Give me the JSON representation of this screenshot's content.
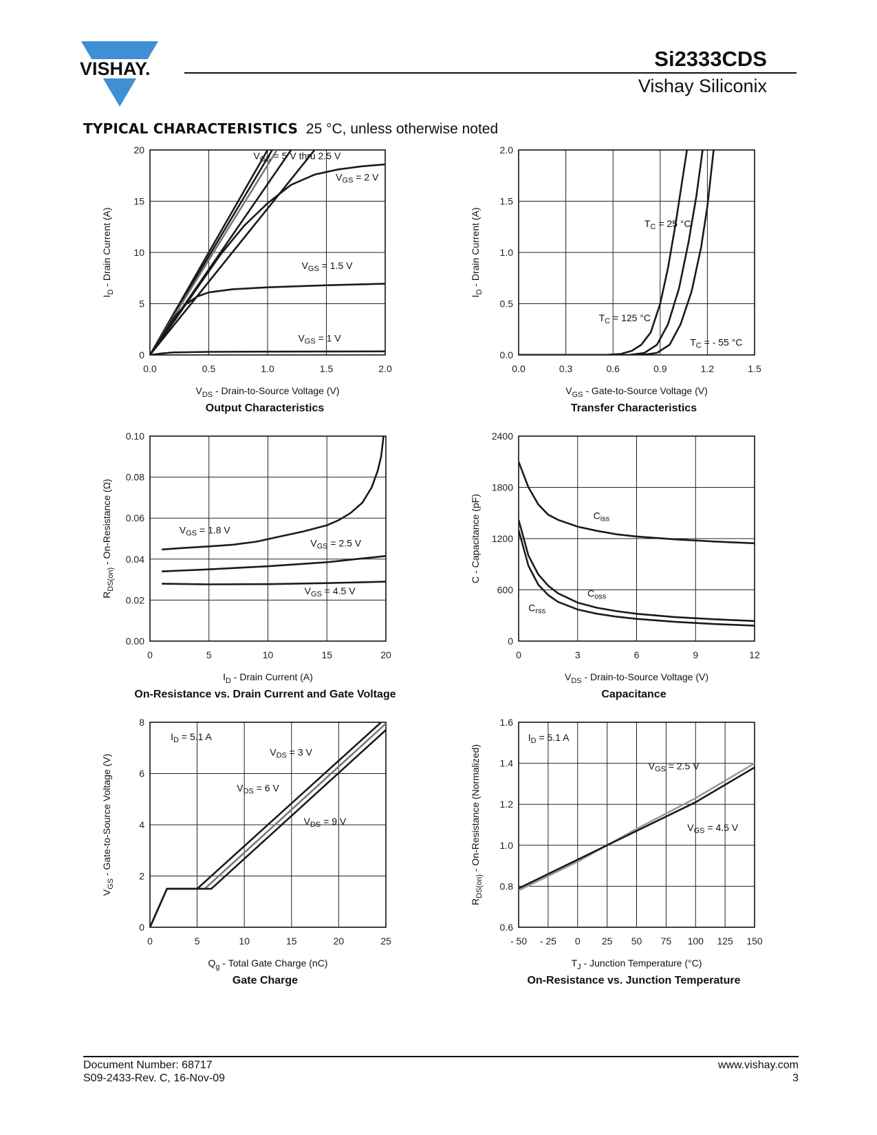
{
  "header": {
    "brand": "VISHAY.",
    "part_number": "Si2333CDS",
    "company": "Vishay Siliconix"
  },
  "section": {
    "title": "TYPICAL CHARACTERISTICS",
    "condition": "25 °C, unless otherwise noted"
  },
  "footer": {
    "doc_number": "Document Number: 68717",
    "revision": "S09-2433-Rev. C, 16-Nov-09",
    "website": "www.vishay.com",
    "page_number": "3"
  },
  "chart_data": [
    {
      "id": "output",
      "type": "line",
      "title": "Output Characteristics",
      "xlabel": "V_DS - Drain-to-Source Voltage (V)",
      "ylabel": "I_D - Drain Current (A)",
      "xlim": [
        0,
        2.0
      ],
      "ylim": [
        0,
        20
      ],
      "xticks": [
        "0.0",
        "0.5",
        "1.0",
        "1.5",
        "2.0"
      ],
      "yticks": [
        "0",
        "5",
        "10",
        "15",
        "20"
      ],
      "grid": true,
      "series": [
        {
          "name": "VGS = 5 V thru 2.5 V",
          "color": "#1a1a1a",
          "points": [
            [
              0,
              0
            ],
            [
              0.25,
              5
            ],
            [
              0.5,
              10
            ],
            [
              0.75,
              15
            ],
            [
              1.0,
              20
            ]
          ]
        },
        {
          "name": "",
          "color": "#1a1a1a",
          "points": [
            [
              0,
              0
            ],
            [
              0.26,
              5
            ],
            [
              0.52,
              10
            ],
            [
              0.78,
              15
            ],
            [
              1.04,
              20
            ]
          ]
        },
        {
          "name": "",
          "color": "#777777",
          "points": [
            [
              0,
              0
            ],
            [
              0.27,
              5
            ],
            [
              0.54,
              10
            ],
            [
              0.81,
              15
            ],
            [
              1.08,
              20
            ]
          ]
        },
        {
          "name": "",
          "color": "#1a1a1a",
          "points": [
            [
              0,
              0
            ],
            [
              0.3,
              5
            ],
            [
              0.6,
              10
            ],
            [
              0.9,
              15
            ],
            [
              1.2,
              20
            ]
          ]
        },
        {
          "name": "",
          "color": "#1a1a1a",
          "points": [
            [
              0,
              0
            ],
            [
              0.35,
              5
            ],
            [
              0.7,
              10
            ],
            [
              1.05,
              15
            ],
            [
              1.4,
              20
            ]
          ]
        },
        {
          "name": "VGS = 2 V",
          "color": "#1a1a1a",
          "points": [
            [
              0,
              0
            ],
            [
              0.2,
              3.2
            ],
            [
              0.4,
              6.5
            ],
            [
              0.6,
              9.8
            ],
            [
              0.8,
              12.6
            ],
            [
              1.0,
              14.8
            ],
            [
              1.2,
              16.6
            ],
            [
              1.4,
              17.6
            ],
            [
              1.6,
              18.1
            ],
            [
              1.8,
              18.4
            ],
            [
              2.0,
              18.6
            ]
          ]
        },
        {
          "name": "VGS = 1.5 V",
          "color": "#1a1a1a",
          "points": [
            [
              0,
              0
            ],
            [
              0.1,
              1.8
            ],
            [
              0.2,
              3.6
            ],
            [
              0.3,
              4.9
            ],
            [
              0.4,
              5.7
            ],
            [
              0.5,
              6.1
            ],
            [
              0.7,
              6.4
            ],
            [
              1.0,
              6.6
            ],
            [
              1.5,
              6.8
            ],
            [
              2.0,
              6.95
            ]
          ]
        },
        {
          "name": "VGS = 1 V",
          "color": "#1a1a1a",
          "points": [
            [
              0,
              0
            ],
            [
              0.1,
              0.15
            ],
            [
              0.2,
              0.25
            ],
            [
              0.5,
              0.3
            ],
            [
              1.0,
              0.32
            ],
            [
              2.0,
              0.35
            ]
          ]
        }
      ],
      "annotations": [
        {
          "text": "VGS = 5 V thru 2.5 V",
          "x": 0.88,
          "y": 19.1
        },
        {
          "text": "VGS = 2 V",
          "x": 1.58,
          "y": 17.0
        },
        {
          "text": "VGS = 1.5 V",
          "x": 1.29,
          "y": 8.4
        },
        {
          "text": "VGS = 1 V",
          "x": 1.26,
          "y": 1.3
        }
      ]
    },
    {
      "id": "transfer",
      "type": "line",
      "title": "Transfer Characteristics",
      "xlabel": "V_GS - Gate-to-Source Voltage (V)",
      "ylabel": "I_D - Drain Current (A)",
      "xlim": [
        0,
        1.5
      ],
      "ylim": [
        0,
        2.0
      ],
      "xticks": [
        "0.0",
        "0.3",
        "0.6",
        "0.9",
        "1.2",
        "1.5"
      ],
      "yticks": [
        "0.0",
        "0.5",
        "1.0",
        "1.5",
        "2.0"
      ],
      "grid": true,
      "series": [
        {
          "name": "TC = 125 °C",
          "color": "#1a1a1a",
          "points": [
            [
              0,
              0
            ],
            [
              0.55,
              0
            ],
            [
              0.65,
              0.01
            ],
            [
              0.72,
              0.04
            ],
            [
              0.78,
              0.1
            ],
            [
              0.84,
              0.22
            ],
            [
              0.9,
              0.5
            ],
            [
              0.95,
              0.85
            ],
            [
              1.0,
              1.3
            ],
            [
              1.05,
              1.8
            ],
            [
              1.07,
              2.0
            ]
          ]
        },
        {
          "name": "TC = 25 °C",
          "color": "#1a1a1a",
          "points": [
            [
              0,
              0
            ],
            [
              0.7,
              0
            ],
            [
              0.8,
              0.02
            ],
            [
              0.88,
              0.1
            ],
            [
              0.95,
              0.3
            ],
            [
              1.02,
              0.65
            ],
            [
              1.08,
              1.1
            ],
            [
              1.13,
              1.55
            ],
            [
              1.17,
              2.0
            ]
          ]
        },
        {
          "name": "TC = - 55 °C",
          "color": "#1a1a1a",
          "points": [
            [
              0,
              0
            ],
            [
              0.78,
              0
            ],
            [
              0.88,
              0.02
            ],
            [
              0.96,
              0.1
            ],
            [
              1.03,
              0.3
            ],
            [
              1.1,
              0.62
            ],
            [
              1.16,
              1.05
            ],
            [
              1.2,
              1.45
            ],
            [
              1.24,
              2.0
            ]
          ]
        }
      ],
      "annotations": [
        {
          "text": "TC = 25 °C",
          "x": 0.8,
          "y": 1.25
        },
        {
          "text": "TC = 125 °C",
          "x": 0.51,
          "y": 0.33
        },
        {
          "text": "TC = - 55 °C",
          "x": 1.09,
          "y": 0.09
        }
      ]
    },
    {
      "id": "onres_id",
      "type": "line",
      "title": "On-Resistance vs. Drain Current and Gate Voltage",
      "xlabel": "I_D - Drain Current (A)",
      "ylabel": "R_DS(on) - On-Resistance (Ω)",
      "xlim": [
        0,
        20
      ],
      "ylim": [
        0,
        0.1
      ],
      "xticks": [
        "0",
        "5",
        "10",
        "15",
        "20"
      ],
      "yticks": [
        "0.00",
        "0.02",
        "0.04",
        "0.06",
        "0.08",
        "0.10"
      ],
      "grid": true,
      "series": [
        {
          "name": "VGS = 1.8 V",
          "color": "#1a1a1a",
          "points": [
            [
              1,
              0.0447
            ],
            [
              3,
              0.0455
            ],
            [
              5,
              0.0462
            ],
            [
              7,
              0.047
            ],
            [
              9,
              0.0485
            ],
            [
              11,
              0.051
            ],
            [
              13,
              0.0535
            ],
            [
              15,
              0.0565
            ],
            [
              16,
              0.059
            ],
            [
              17,
              0.0625
            ],
            [
              18,
              0.0675
            ],
            [
              18.8,
              0.075
            ],
            [
              19.3,
              0.083
            ],
            [
              19.6,
              0.09
            ],
            [
              19.8,
              0.1
            ]
          ]
        },
        {
          "name": "VGS = 2.5 V",
          "color": "#1a1a1a",
          "points": [
            [
              1,
              0.034
            ],
            [
              5,
              0.035
            ],
            [
              10,
              0.0365
            ],
            [
              15,
              0.0385
            ],
            [
              20,
              0.0415
            ]
          ]
        },
        {
          "name": "VGS = 4.5 V",
          "color": "#1a1a1a",
          "points": [
            [
              1,
              0.028
            ],
            [
              5,
              0.0277
            ],
            [
              10,
              0.0278
            ],
            [
              15,
              0.0283
            ],
            [
              20,
              0.029
            ]
          ]
        }
      ],
      "annotations": [
        {
          "text": "VGS = 1.8 V",
          "x": 2.5,
          "y": 0.0525
        },
        {
          "text": "VGS = 2.5 V",
          "x": 13.6,
          "y": 0.0462
        },
        {
          "text": "VGS = 4.5 V",
          "x": 13.1,
          "y": 0.0228
        }
      ]
    },
    {
      "id": "capacitance",
      "type": "line",
      "title": "Capacitance",
      "xlabel": "V_DS - Drain-to-Source Voltage (V)",
      "ylabel": "C - Capacitance (pF)",
      "xlim": [
        0,
        12
      ],
      "ylim": [
        0,
        2400
      ],
      "xticks": [
        "0",
        "3",
        "6",
        "9",
        "12"
      ],
      "yticks": [
        "0",
        "600",
        "1200",
        "1800",
        "2400"
      ],
      "grid": true,
      "series": [
        {
          "name": "Ciss",
          "color": "#1a1a1a",
          "points": [
            [
              0,
              2100
            ],
            [
              0.5,
              1800
            ],
            [
              1,
              1600
            ],
            [
              1.5,
              1480
            ],
            [
              2,
              1420
            ],
            [
              3,
              1340
            ],
            [
              4,
              1290
            ],
            [
              5,
              1250
            ],
            [
              6,
              1225
            ],
            [
              8,
              1190
            ],
            [
              10,
              1165
            ],
            [
              12,
              1145
            ]
          ]
        },
        {
          "name": "Coss",
          "color": "#1a1a1a",
          "points": [
            [
              0,
              1420
            ],
            [
              0.5,
              1000
            ],
            [
              1,
              780
            ],
            [
              1.5,
              650
            ],
            [
              2,
              560
            ],
            [
              3,
              450
            ],
            [
              4,
              390
            ],
            [
              5,
              350
            ],
            [
              6,
              320
            ],
            [
              8,
              280
            ],
            [
              10,
              255
            ],
            [
              12,
              235
            ]
          ]
        },
        {
          "name": "Crss",
          "color": "#1a1a1a",
          "points": [
            [
              0,
              1300
            ],
            [
              0.5,
              880
            ],
            [
              1,
              660
            ],
            [
              1.5,
              540
            ],
            [
              2,
              460
            ],
            [
              3,
              370
            ],
            [
              4,
              320
            ],
            [
              5,
              285
            ],
            [
              6,
              260
            ],
            [
              8,
              225
            ],
            [
              10,
              200
            ],
            [
              12,
              180
            ]
          ]
        }
      ],
      "annotations": [
        {
          "text": "Ciss",
          "x": 3.8,
          "y": 1430
        },
        {
          "text": "Coss",
          "x": 3.5,
          "y": 520
        },
        {
          "text": "Crss",
          "x": 0.5,
          "y": 350
        }
      ]
    },
    {
      "id": "gate_charge",
      "type": "line",
      "title": "Gate Charge",
      "xlabel": "Q_g - Total Gate Charge (nC)",
      "ylabel": "V_GS - Gate-to-Source Voltage (V)",
      "xlim": [
        0,
        25
      ],
      "ylim": [
        0,
        8
      ],
      "xticks": [
        "0",
        "5",
        "10",
        "15",
        "20",
        "25"
      ],
      "yticks": [
        "0",
        "2",
        "4",
        "6",
        "8"
      ],
      "grid": true,
      "series": [
        {
          "name": "VDS = 3 V",
          "color": "#1a1a1a",
          "points": [
            [
              0,
              0
            ],
            [
              1.8,
              1.5
            ],
            [
              5,
              1.5
            ],
            [
              24.5,
              8.0
            ]
          ]
        },
        {
          "name": "VDS = 6 V",
          "color": "#777777",
          "points": [
            [
              0,
              0
            ],
            [
              1.8,
              1.5
            ],
            [
              5.8,
              1.5
            ],
            [
              25,
              7.95
            ]
          ]
        },
        {
          "name": "VDS = 9 V",
          "color": "#1a1a1a",
          "points": [
            [
              0,
              0
            ],
            [
              1.8,
              1.5
            ],
            [
              6.5,
              1.5
            ],
            [
              25,
              7.7
            ]
          ]
        }
      ],
      "annotations": [
        {
          "text": "ID = 5.1 A",
          "x": 2.2,
          "y": 7.3
        },
        {
          "text": "VDS = 3 V",
          "x": 12.7,
          "y": 6.7
        },
        {
          "text": "VDS = 6 V",
          "x": 9.2,
          "y": 5.3
        },
        {
          "text": "VDS = 9 V",
          "x": 16.3,
          "y": 4.0
        }
      ]
    },
    {
      "id": "onres_tj",
      "type": "line",
      "title": "On-Resistance vs. Junction Temperature",
      "xlabel": "T_J - Junction Temperature (°C)",
      "ylabel": "R_DS(on) - On-Resistance (Normalized)",
      "xlim": [
        -50,
        150
      ],
      "ylim": [
        0.6,
        1.6
      ],
      "xticks": [
        "- 50",
        "- 25",
        "0",
        "25",
        "50",
        "75",
        "100",
        "125",
        "150"
      ],
      "yticks": [
        "0.6",
        "0.8",
        "1.0",
        "1.2",
        "1.4",
        "1.6"
      ],
      "grid": true,
      "series": [
        {
          "name": "VGS = 2.5 V",
          "color": "#999999",
          "points": [
            [
              -50,
              0.78
            ],
            [
              0,
              0.92
            ],
            [
              25,
              1.0
            ],
            [
              50,
              1.08
            ],
            [
              100,
              1.23
            ],
            [
              150,
              1.4
            ]
          ]
        },
        {
          "name": "VGS = 4.5 V",
          "color": "#1a1a1a",
          "points": [
            [
              -50,
              0.79
            ],
            [
              0,
              0.93
            ],
            [
              25,
              1.0
            ],
            [
              50,
              1.07
            ],
            [
              100,
              1.21
            ],
            [
              150,
              1.38
            ]
          ]
        }
      ],
      "annotations": [
        {
          "text": "ID = 5.1 A",
          "x": -42,
          "y": 1.51
        },
        {
          "text": "VGS = 2.5 V",
          "x": 60,
          "y": 1.37
        },
        {
          "text": "VGS = 4.5 V",
          "x": 93,
          "y": 1.07
        }
      ]
    }
  ]
}
